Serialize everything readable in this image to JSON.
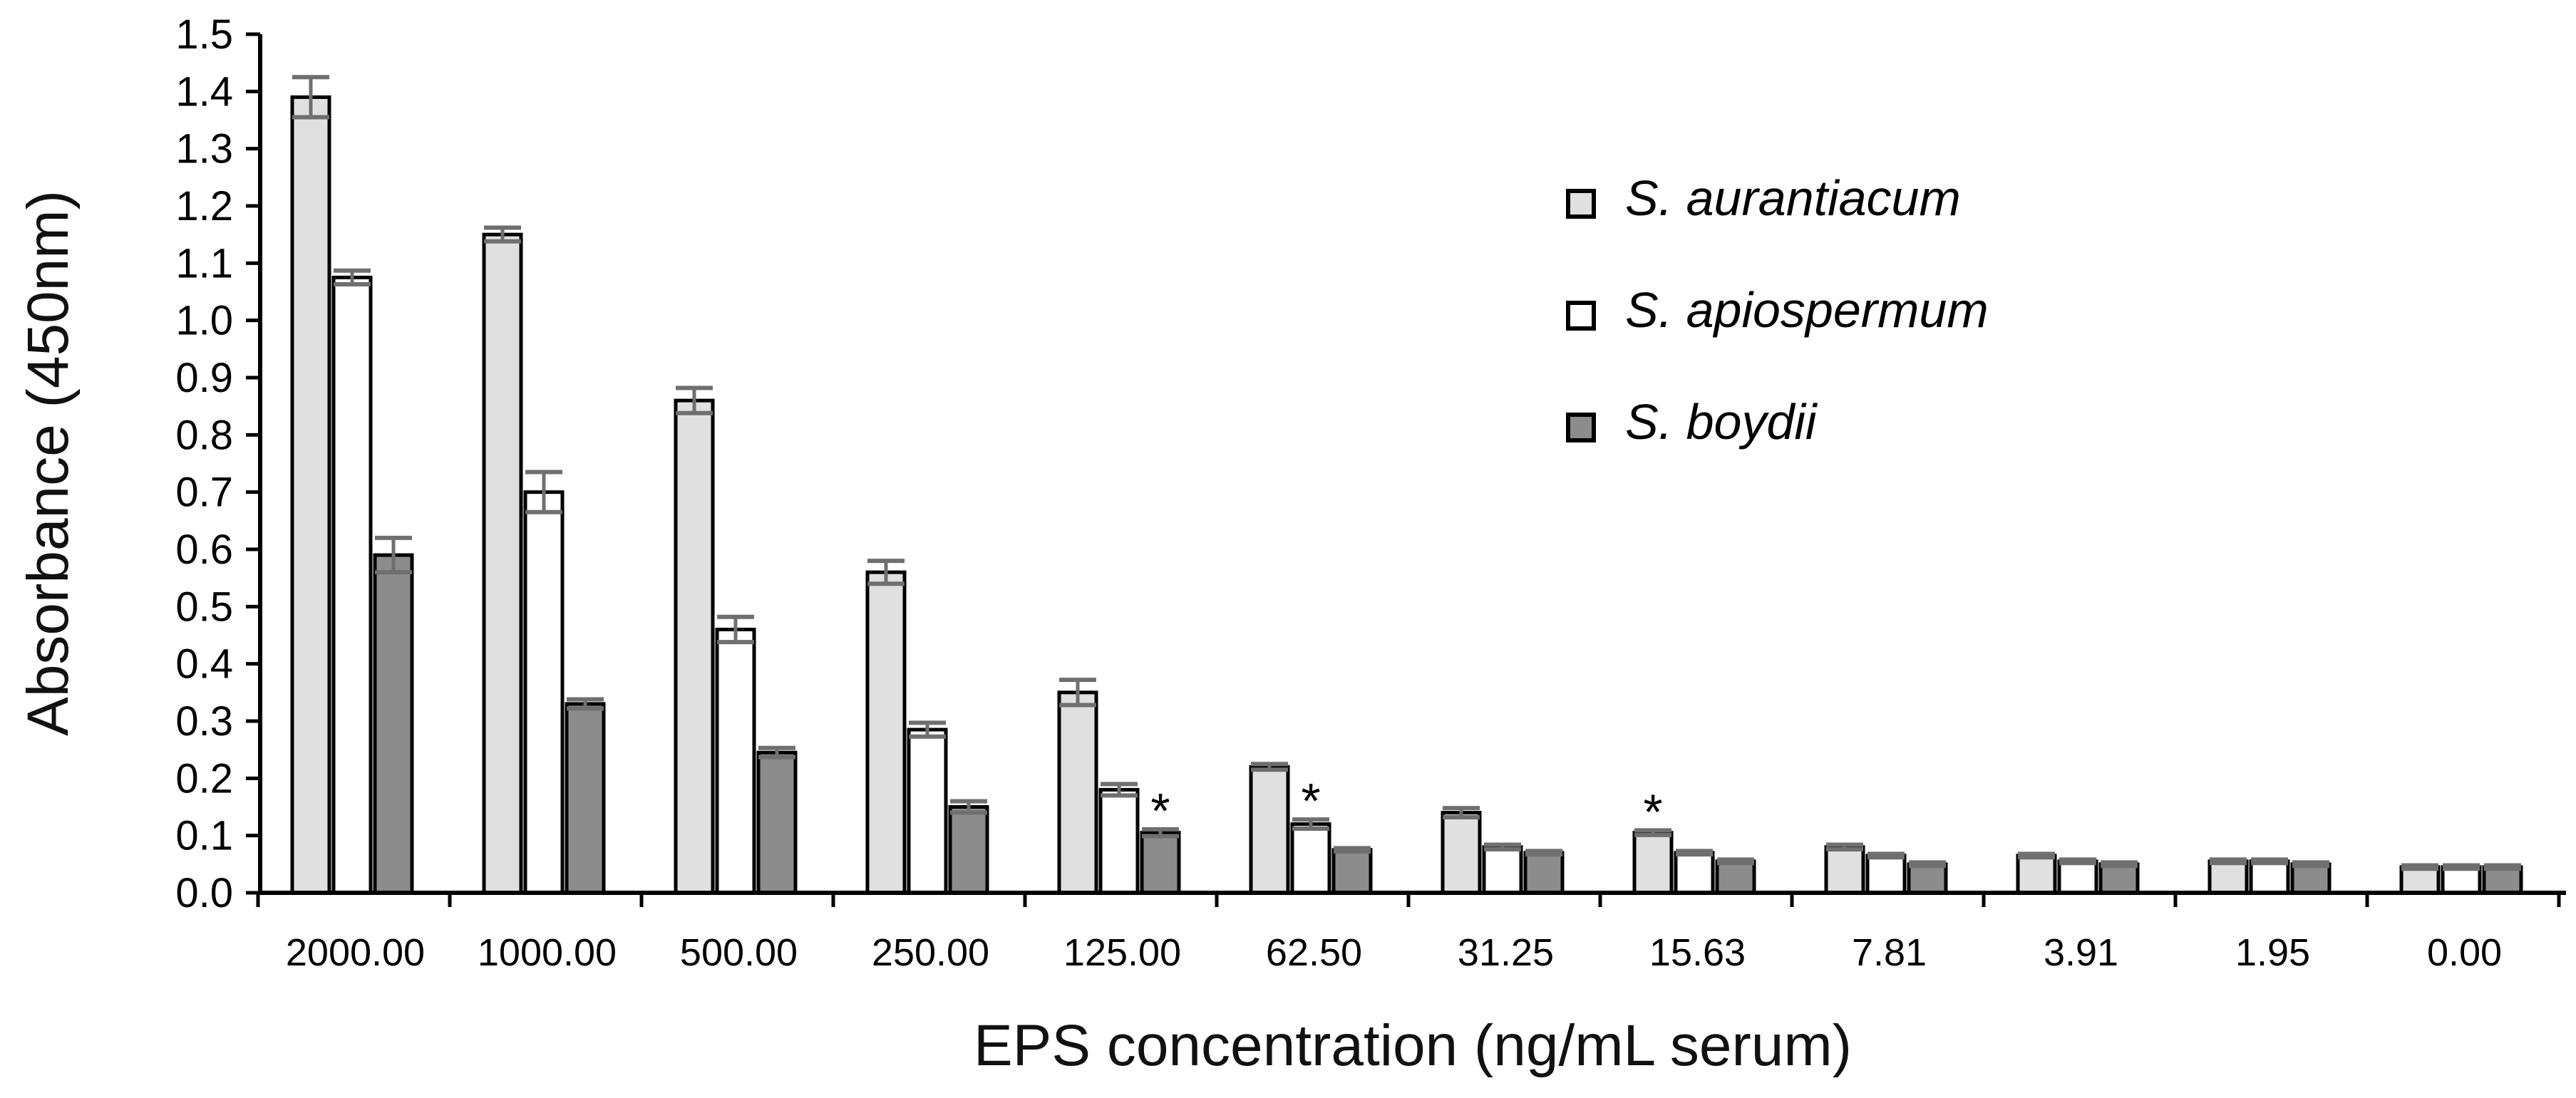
{
  "chart_data": {
    "type": "bar",
    "title": "",
    "xlabel": "EPS concentration (ng/mL serum)",
    "ylabel": "Absorbance (450nm)",
    "ylim": [
      0,
      1.5
    ],
    "yticks": [
      "0.0",
      "0.1",
      "0.2",
      "0.3",
      "0.4",
      "0.5",
      "0.6",
      "0.7",
      "0.8",
      "0.9",
      "1.0",
      "1.1",
      "1.2",
      "1.3",
      "1.4",
      "1.5"
    ],
    "categories": [
      "2000.00",
      "1000.00",
      "500.00",
      "250.00",
      "125.00",
      "62.50",
      "31.25",
      "15.63",
      "7.81",
      "3.91",
      "1.95",
      "0.00"
    ],
    "series": [
      {
        "name": "S. aurantiacum",
        "color": "#e0e0e0",
        "values": [
          1.39,
          1.15,
          0.86,
          0.56,
          0.35,
          0.22,
          0.14,
          0.105,
          0.08,
          0.065,
          0.055,
          0.045
        ],
        "errors": [
          0.035,
          0.012,
          0.022,
          0.02,
          0.022,
          0.005,
          0.008,
          0.004,
          0.004,
          0.003,
          0.003,
          0.003
        ]
      },
      {
        "name": "S. apiospermum",
        "color": "#ffffff",
        "values": [
          1.075,
          0.7,
          0.46,
          0.285,
          0.18,
          0.12,
          0.08,
          0.07,
          0.065,
          0.055,
          0.055,
          0.045
        ],
        "errors": [
          0.012,
          0.035,
          0.022,
          0.012,
          0.01,
          0.008,
          0.004,
          0.003,
          0.003,
          0.003,
          0.003,
          0.003
        ]
      },
      {
        "name": "S. boydii",
        "color": "#8c8c8c",
        "values": [
          0.59,
          0.33,
          0.245,
          0.15,
          0.105,
          0.075,
          0.07,
          0.055,
          0.05,
          0.05,
          0.05,
          0.045
        ],
        "errors": [
          0.03,
          0.008,
          0.008,
          0.01,
          0.006,
          0.003,
          0.003,
          0.003,
          0.003,
          0.003,
          0.003,
          0.003
        ]
      }
    ],
    "legend": {
      "placement": "top-right"
    },
    "annotations": [
      {
        "text": "*",
        "category": "125.00",
        "series": 2
      },
      {
        "text": "*",
        "category": "62.50",
        "series": 1
      },
      {
        "text": "*",
        "category": "15.63",
        "series": 0
      }
    ]
  }
}
